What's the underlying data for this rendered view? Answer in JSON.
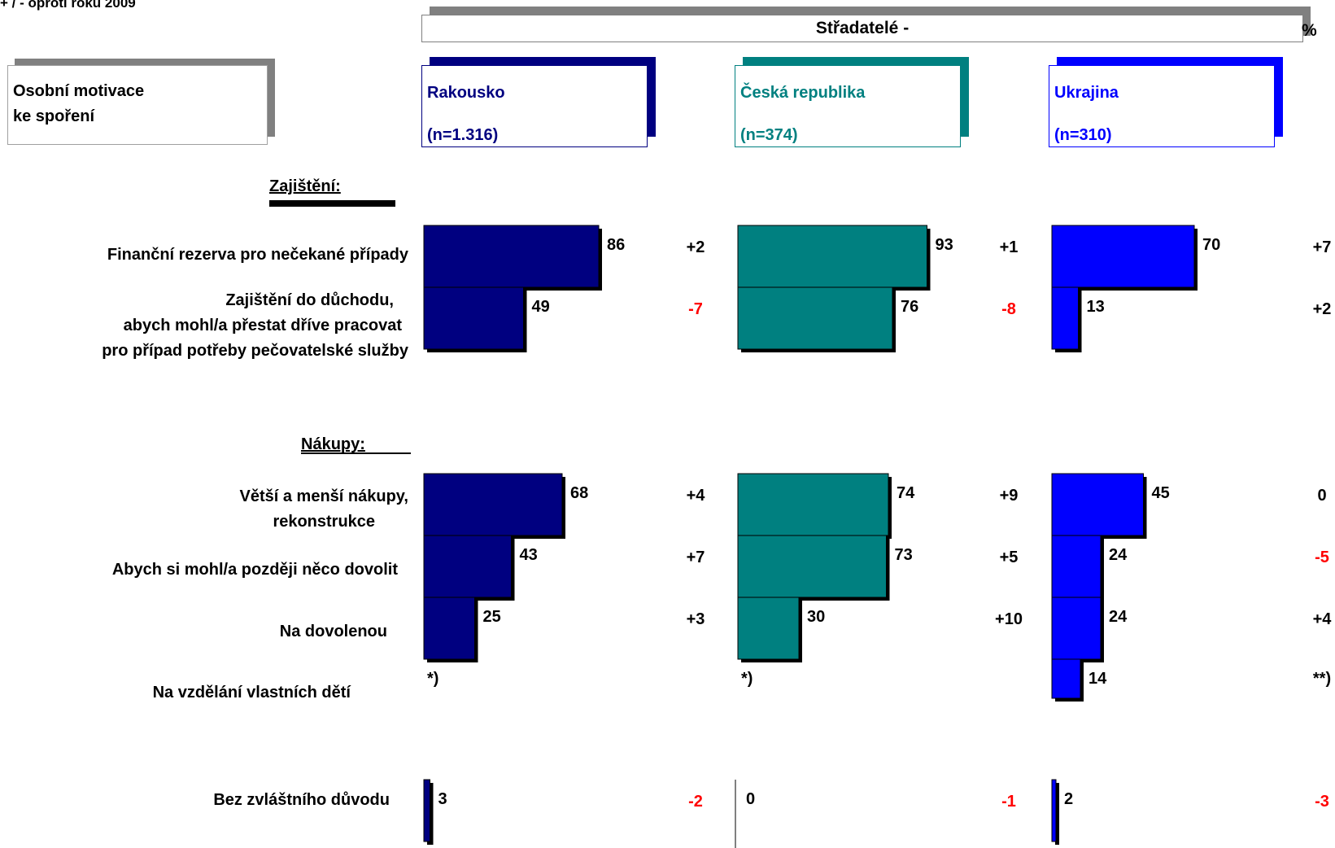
{
  "top_note": "+ / - oproti roku 2009",
  "title": "Střadatelé -",
  "unit": "%",
  "question": {
    "line1": "Osobní motivace",
    "line2": "ke spoření"
  },
  "countries": [
    {
      "name": "Rakousko",
      "n": "(n=1.316)",
      "color": "#000080"
    },
    {
      "name": "Česká republika",
      "n": "(n=374)",
      "color": "#008080"
    },
    {
      "name": "Ukrajina",
      "n": "(n=310)",
      "color": "#0000FF"
    }
  ],
  "sections": {
    "security": "Zajištění:",
    "purchases": "Nákupy:"
  },
  "row_labels": [
    [
      "Finanční rezerva pro nečekané případy"
    ],
    [
      "Zajištění do důchodu,",
      "abych mohl/a  přestat dříve pracovat",
      "pro případ potřeby pečovatelské služby"
    ],
    [
      "Větší a menší nákupy,",
      "rekonstrukce"
    ],
    [
      "Abych si mohl/a později něco dovolit"
    ],
    [
      "Na dovolenou"
    ],
    [
      "Na vzdělání vlastních dětí"
    ],
    [
      "Bez zvláštního důvodu"
    ]
  ],
  "change_colors": {
    "positive": "#000000",
    "negative": "#FF0000"
  },
  "chart_data": {
    "type": "bar",
    "orientation": "horizontal",
    "xlim": [
      0,
      100
    ],
    "categories": [
      "Finanční rezerva pro nečekané případy",
      "Zajištění do důchodu, abych mohl/a přestat dříve pracovat pro případ potřeby pečovatelské služby",
      "Větší a menší nákupy, rekonstrukce",
      "Abych si mohl/a později něco dovolit",
      "Na dovolenou",
      "Na vzdělání vlastních dětí",
      "Bez zvláštního důvodu"
    ],
    "series": [
      {
        "name": "Rakousko",
        "values": [
          86,
          49,
          68,
          43,
          25,
          null,
          3
        ],
        "value_labels": [
          "86",
          "49",
          "68",
          "43",
          "25",
          "*)",
          "3"
        ],
        "change_vs_2009": [
          "+2",
          "-7",
          "+4",
          "+7",
          "+3",
          "",
          "-2"
        ]
      },
      {
        "name": "Česká republika",
        "values": [
          93,
          76,
          74,
          73,
          30,
          null,
          0
        ],
        "value_labels": [
          "93",
          "76",
          "74",
          "73",
          "30",
          "*)",
          "0"
        ],
        "change_vs_2009": [
          "+1",
          "-8",
          "+9",
          "+5",
          "+10",
          "",
          "-1"
        ]
      },
      {
        "name": "Ukrajina",
        "values": [
          70,
          13,
          45,
          24,
          24,
          14,
          2
        ],
        "value_labels": [
          "70",
          "13",
          "45",
          "24",
          "24",
          "14",
          "2"
        ],
        "change_vs_2009": [
          "+7",
          "+2",
          "0",
          "-5",
          "+4",
          "**)",
          "-3"
        ]
      }
    ]
  }
}
